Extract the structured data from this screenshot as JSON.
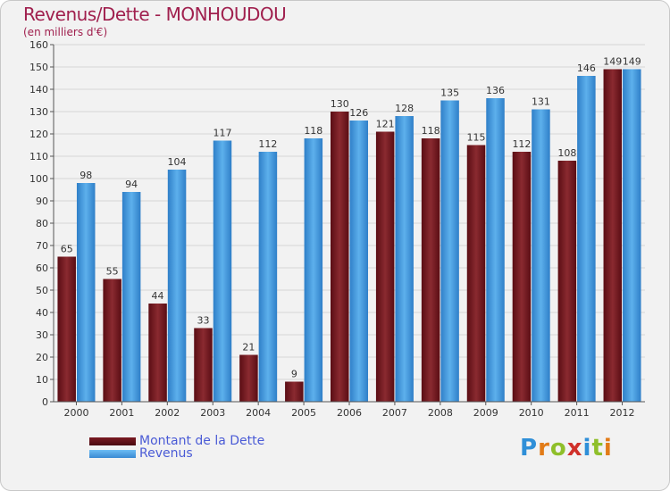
{
  "title": "Revenus/Dette - MONHOUDOU",
  "subtitle": "(en milliers d'€)",
  "logo": {
    "text": "Proxiti",
    "letters": [
      "P",
      "r",
      "o",
      "x",
      "i",
      "t",
      "i"
    ]
  },
  "chart_data": {
    "type": "bar",
    "title": "Revenus/Dette - MONHOUDOU",
    "ylabel": "(en milliers d'€)",
    "xlabel": "",
    "ylim": [
      0,
      160
    ],
    "yticks": [
      0,
      10,
      20,
      30,
      40,
      50,
      60,
      70,
      80,
      90,
      100,
      110,
      120,
      130,
      140,
      150,
      160
    ],
    "categories": [
      "2000",
      "2001",
      "2002",
      "2003",
      "2004",
      "2005",
      "2006",
      "2007",
      "2008",
      "2009",
      "2010",
      "2011",
      "2012"
    ],
    "series": [
      {
        "name": "Montant de la Dette",
        "color": "#7a1a22",
        "values": [
          65,
          55,
          44,
          33,
          21,
          9,
          130,
          121,
          118,
          115,
          112,
          108,
          149
        ]
      },
      {
        "name": "Revenus",
        "color": "#4aa2e4",
        "values": [
          98,
          94,
          104,
          117,
          112,
          118,
          126,
          128,
          135,
          136,
          131,
          146,
          149
        ]
      }
    ],
    "legend": "bottom-left"
  }
}
